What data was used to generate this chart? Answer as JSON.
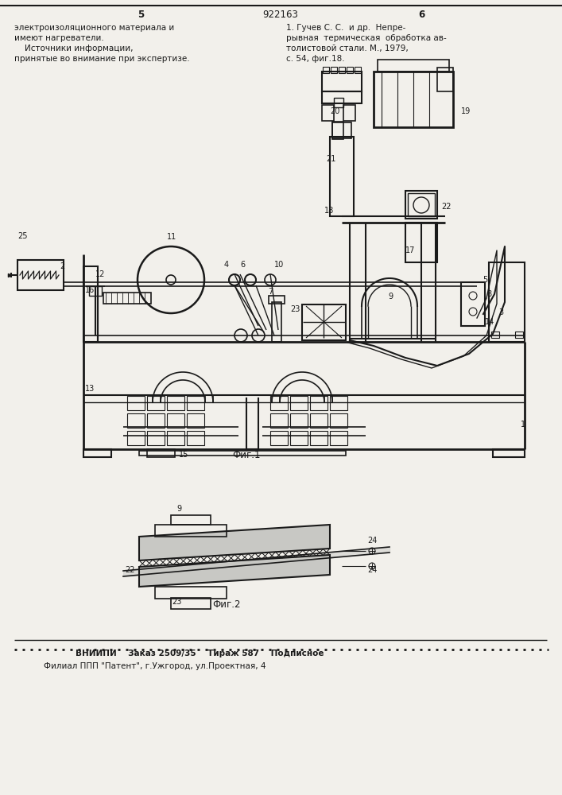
{
  "page_number_left": "5",
  "page_number_center": "922163",
  "page_number_right": "6",
  "text_left_col": [
    "электроизоляционного материала и",
    "имеют нагреватели.",
    "    Источники информации,",
    "принятые во внимание при экспертизе."
  ],
  "text_right_col": [
    "1. Гучев С. С.  и др.  Непре-",
    "рывная  термическая  обработка ав-",
    "толистовой стали. М., 1979,",
    "с. 54, фиг.18."
  ],
  "fig1_label": "Фиг.1",
  "fig2_label": "Фиг.2",
  "bottom_line1": "ВНИИПИ    Заказ 2509/35    Тираж 587    Подписное",
  "bottom_line2": "Филиал ППП \"Патент\", г.Ужгород, ул.Проектная, 4",
  "bg_color": "#f2f0eb",
  "text_color": "#1a1a1a",
  "line_color": "#1a1a1a"
}
